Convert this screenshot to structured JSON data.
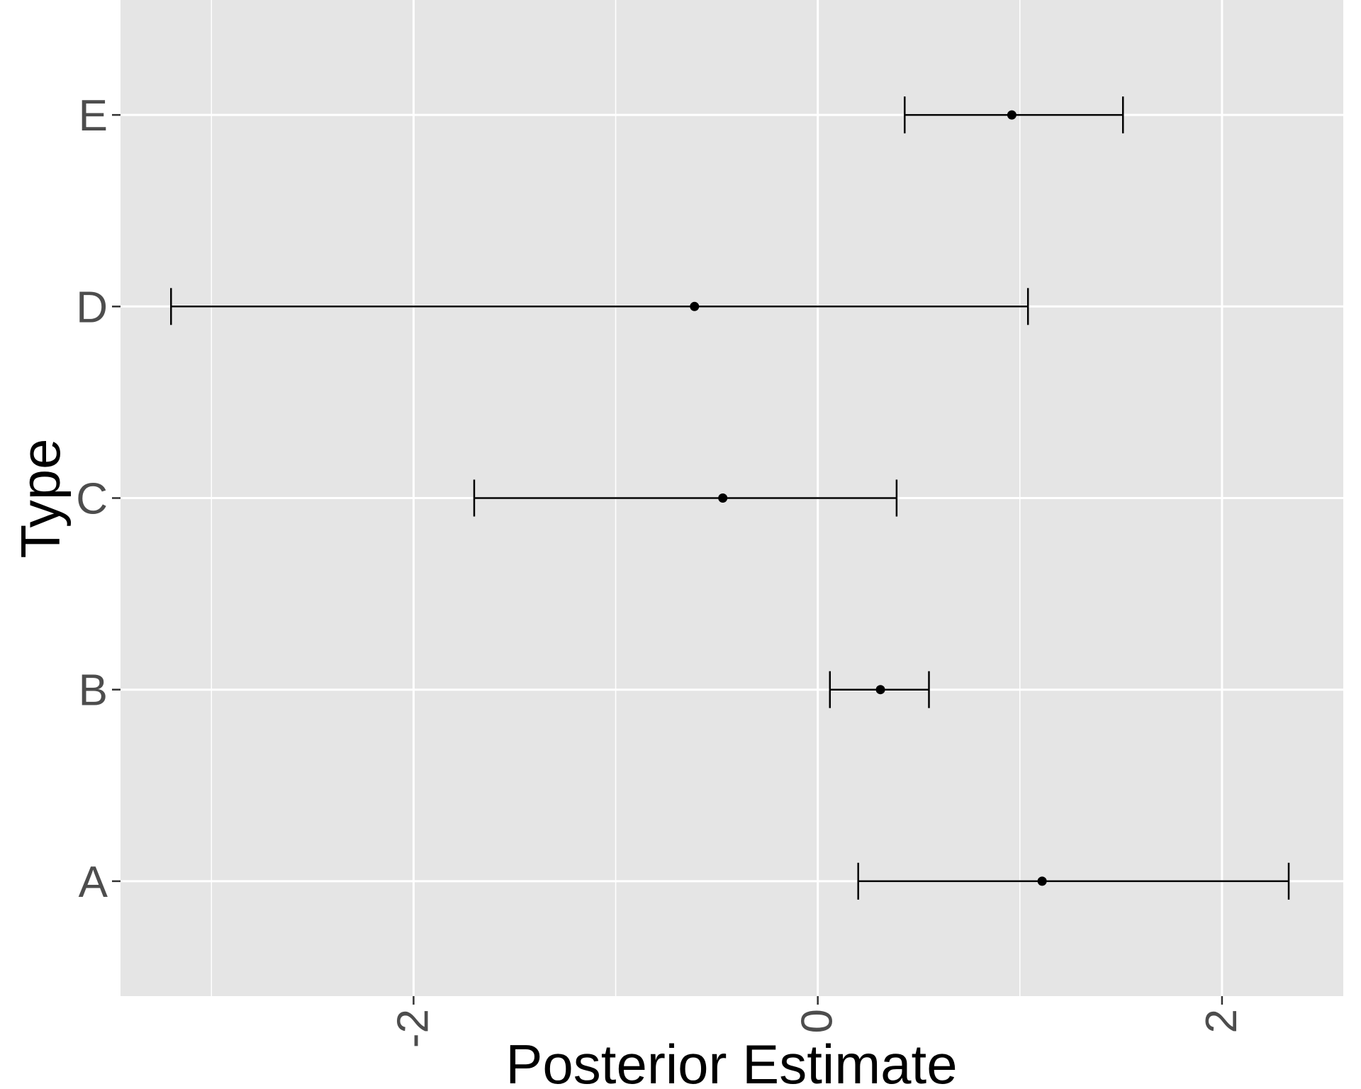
{
  "chart_data": {
    "type": "errorbar",
    "title": "",
    "xlabel": "Posterior Estimate",
    "ylabel": "Type",
    "xlim": [
      -3.45,
      2.6
    ],
    "x_ticks": [
      -2,
      0,
      2
    ],
    "x_tick_labels": [
      "-2",
      "0",
      "2"
    ],
    "x_minor_ticks": [
      -3,
      -1,
      1
    ],
    "categories": [
      "A",
      "B",
      "C",
      "D",
      "E"
    ],
    "series": [
      {
        "points": [
          {
            "category": "A",
            "estimate": 1.11,
            "lower": 0.2,
            "upper": 2.33
          },
          {
            "category": "B",
            "estimate": 0.31,
            "lower": 0.06,
            "upper": 0.55
          },
          {
            "category": "C",
            "estimate": -0.47,
            "lower": -1.7,
            "upper": 0.39
          },
          {
            "category": "D",
            "estimate": -0.61,
            "lower": -3.2,
            "upper": 1.04
          },
          {
            "category": "E",
            "estimate": 0.96,
            "lower": 0.43,
            "upper": 1.51
          }
        ]
      }
    ],
    "grid": true,
    "colors": {
      "panel_background": "#e5e5e5",
      "grid_line": "#ffffff",
      "mark": "#000000",
      "tick_label": "#4d4d4d",
      "axis_tick": "#333333"
    }
  }
}
